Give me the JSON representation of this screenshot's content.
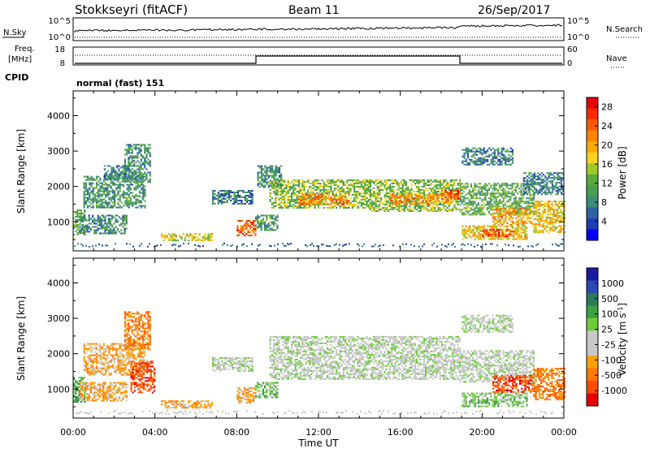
{
  "header": {
    "station": "Stokkseyri (fitACF)",
    "beam": "Beam 11",
    "date": "26/Sep/2017"
  },
  "panels": {
    "nsky_label": "N.Sky",
    "nsearch_label": "N.Search",
    "nsky_ticks": [
      "10^5",
      "10^0"
    ],
    "nsearch_ticks": [
      "10^5",
      "10^0"
    ],
    "freq_label_1": "Freq.",
    "freq_label_2": "[MHz]",
    "freq_ticks": [
      "18",
      "8"
    ],
    "nave_label": "Nave",
    "nave_ticks": [
      "60",
      "0"
    ],
    "cpid_label": "CPID",
    "cpid_value": "normal (fast) 151"
  },
  "colors": {
    "power": [
      "#0000ff",
      "#1e3cb4",
      "#2d64a0",
      "#3c8c78",
      "#46a050",
      "#5aaa3c",
      "#a0c828",
      "#ffd21e",
      "#ffaa00",
      "#ff8200",
      "#ff5a00",
      "#ff2800",
      "#e60000"
    ],
    "velocity": [
      "#1a1aa0",
      "#2a4ab4",
      "#2a7a5a",
      "#3aa040",
      "#6ccc3a",
      "#c8c8c8",
      "#c8c8c8",
      "#ffa000",
      "#ff7800",
      "#ff4a00",
      "#e60000"
    ]
  },
  "chart_data": [
    {
      "type": "heatmap",
      "name": "power",
      "xlabel": "Time UT",
      "ylabel": "Slant Range [km]",
      "x_ticks": [
        "00:00",
        "04:00",
        "08:00",
        "12:00",
        "16:00",
        "20:00",
        "00:00"
      ],
      "y_ticks": [
        "1000",
        "2000",
        "3000",
        "4000"
      ],
      "colorbar_label": "Power [dB]",
      "colorbar_ticks": [
        "4",
        "8",
        "12",
        "16",
        "20",
        "24",
        "28"
      ],
      "xlim_hours": [
        0,
        24
      ],
      "ylim_km": [
        180,
        4700
      ],
      "regions": [
        {
          "t0": 0.0,
          "t1": 0.6,
          "r0": 650,
          "r1": 1350,
          "p": 12
        },
        {
          "t0": 0.3,
          "t1": 2.6,
          "r0": 650,
          "r1": 1200,
          "p": 9
        },
        {
          "t0": 0.5,
          "t1": 3.5,
          "r0": 1400,
          "r1": 2300,
          "p": 10
        },
        {
          "t0": 1.5,
          "t1": 2.8,
          "r0": 2200,
          "r1": 2600,
          "p": 8
        },
        {
          "t0": 2.5,
          "t1": 3.8,
          "r0": 2100,
          "r1": 3200,
          "p": 9
        },
        {
          "t0": 4.3,
          "t1": 6.8,
          "r0": 480,
          "r1": 680,
          "p": 16
        },
        {
          "t0": 6.8,
          "t1": 8.8,
          "r0": 1500,
          "r1": 1900,
          "p": 8
        },
        {
          "t0": 8.0,
          "t1": 8.9,
          "r0": 600,
          "r1": 1050,
          "p": 24
        },
        {
          "t0": 8.9,
          "t1": 10.0,
          "r0": 750,
          "r1": 1200,
          "p": 10
        },
        {
          "t0": 9.0,
          "t1": 10.2,
          "r0": 2000,
          "r1": 2600,
          "p": 9
        },
        {
          "t0": 9.6,
          "t1": 14.5,
          "r0": 1400,
          "r1": 2200,
          "p": 14
        },
        {
          "t0": 11.0,
          "t1": 13.5,
          "r0": 1500,
          "r1": 1800,
          "p": 22
        },
        {
          "t0": 14.5,
          "t1": 18.9,
          "r0": 1300,
          "r1": 2200,
          "p": 14
        },
        {
          "t0": 15.5,
          "t1": 18.5,
          "r0": 1500,
          "r1": 1800,
          "p": 21
        },
        {
          "t0": 18.0,
          "t1": 18.9,
          "r0": 1650,
          "r1": 1900,
          "p": 24
        },
        {
          "t0": 18.9,
          "t1": 22.5,
          "r0": 1200,
          "r1": 2100,
          "p": 12
        },
        {
          "t0": 19.0,
          "t1": 22.2,
          "r0": 500,
          "r1": 900,
          "p": 18
        },
        {
          "t0": 20.0,
          "t1": 21.5,
          "r0": 600,
          "r1": 800,
          "p": 24
        },
        {
          "t0": 20.5,
          "t1": 22.5,
          "r0": 900,
          "r1": 1400,
          "p": 20
        },
        {
          "t0": 22.5,
          "t1": 24.0,
          "r0": 700,
          "r1": 1600,
          "p": 18
        },
        {
          "t0": 19.0,
          "t1": 21.5,
          "r0": 2600,
          "r1": 3100,
          "p": 8
        },
        {
          "t0": 22.0,
          "t1": 24.0,
          "r0": 1800,
          "r1": 2400,
          "p": 8
        }
      ]
    },
    {
      "type": "heatmap",
      "name": "velocity",
      "xlabel": "Time UT",
      "ylabel": "Slant Range [km]",
      "x_ticks": [
        "00:00",
        "04:00",
        "08:00",
        "12:00",
        "16:00",
        "20:00",
        "00:00"
      ],
      "y_ticks": [
        "1000",
        "2000",
        "3000",
        "4000"
      ],
      "colorbar_label": "Velocity [m s^-1]",
      "colorbar_ticks": [
        "1000",
        "500",
        "100",
        "25",
        "-25",
        "-100",
        "-500",
        "-1000"
      ],
      "xlim_hours": [
        0,
        24
      ],
      "ylim_km": [
        180,
        4700
      ],
      "regions": [
        {
          "t0": 0.0,
          "t1": 0.6,
          "r0": 650,
          "r1": 1350,
          "c": 3
        },
        {
          "t0": 0.3,
          "t1": 2.6,
          "r0": 650,
          "r1": 1200,
          "c": 7
        },
        {
          "t0": 0.5,
          "t1": 3.5,
          "r0": 1400,
          "r1": 2300,
          "c": 7
        },
        {
          "t0": 2.5,
          "t1": 3.8,
          "r0": 2100,
          "r1": 3200,
          "c": 8
        },
        {
          "t0": 2.8,
          "t1": 4.0,
          "r0": 900,
          "r1": 1800,
          "c": 9
        },
        {
          "t0": 4.3,
          "t1": 6.8,
          "r0": 480,
          "r1": 680,
          "c": 7
        },
        {
          "t0": 6.8,
          "t1": 8.8,
          "r0": 1500,
          "r1": 1900,
          "c": 5
        },
        {
          "t0": 8.0,
          "t1": 8.9,
          "r0": 600,
          "r1": 1050,
          "c": 7
        },
        {
          "t0": 8.9,
          "t1": 10.0,
          "r0": 750,
          "r1": 1200,
          "c": 4
        },
        {
          "t0": 9.6,
          "t1": 18.9,
          "r0": 1300,
          "r1": 2500,
          "c": 5
        },
        {
          "t0": 18.9,
          "t1": 22.5,
          "r0": 1200,
          "r1": 2100,
          "c": 5
        },
        {
          "t0": 19.0,
          "t1": 22.2,
          "r0": 500,
          "r1": 900,
          "c": 4
        },
        {
          "t0": 20.5,
          "t1": 22.5,
          "r0": 900,
          "r1": 1400,
          "c": 9
        },
        {
          "t0": 22.5,
          "t1": 24.0,
          "r0": 700,
          "r1": 1600,
          "c": 8
        },
        {
          "t0": 19.0,
          "t1": 21.5,
          "r0": 2600,
          "r1": 3100,
          "c": 5
        }
      ]
    }
  ]
}
